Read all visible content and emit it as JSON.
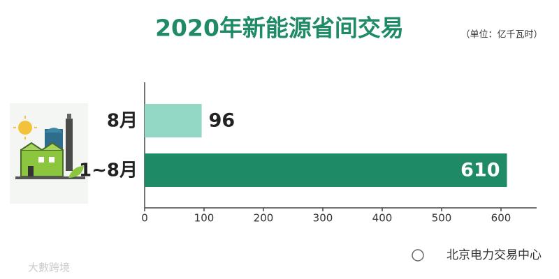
{
  "chart_data": {
    "type": "bar",
    "orientation": "horizontal",
    "title": "2020年新能源省间交易",
    "unit": "（单位：亿千瓦时）",
    "categories": [
      "8月",
      "1~8月"
    ],
    "values": [
      96,
      610
    ],
    "colors": [
      "#93d8c4",
      "#1e8a66"
    ],
    "title_color": "#1e8a66",
    "xlim": [
      0,
      660
    ],
    "xticks": [
      0,
      100,
      200,
      300,
      400,
      500,
      600
    ],
    "grid": false,
    "annotations": [
      "北京电力交易中心",
      "大數跨境"
    ]
  }
}
